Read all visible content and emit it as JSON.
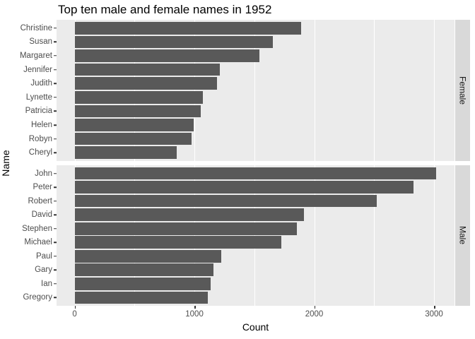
{
  "title": "Top ten male and female names in 1952",
  "chart_data": {
    "type": "bar",
    "orientation": "horizontal",
    "title": "Top ten male and female names in 1952",
    "xlabel": "Count",
    "ylabel": "Name",
    "x_ticks": [
      0,
      1000,
      2000,
      3000
    ],
    "x_minor_ticks": [
      500,
      1500,
      2500
    ],
    "x_domain": [
      -151,
      3171
    ],
    "grid": "on",
    "legend": "none",
    "facets": [
      {
        "label": "Female",
        "categories": [
          "Christine",
          "Susan",
          "Margaret",
          "Jennifer",
          "Judith",
          "Lynette",
          "Patricia",
          "Helen",
          "Robyn",
          "Cheryl"
        ],
        "values": [
          1890,
          1655,
          1545,
          1210,
          1190,
          1070,
          1055,
          995,
          975,
          855
        ]
      },
      {
        "label": "Male",
        "categories": [
          "John",
          "Peter",
          "Robert",
          "David",
          "Stephen",
          "Michael",
          "Paul",
          "Gary",
          "Ian",
          "Gregory"
        ],
        "values": [
          3020,
          2830,
          2520,
          1915,
          1855,
          1725,
          1225,
          1160,
          1135,
          1110
        ]
      }
    ],
    "colors": {
      "bar": "#595959",
      "panel_background": "#EBEBEB",
      "gridline": "#FFFFFF",
      "strip_background": "#D9D9D9",
      "strip_text": "#1A1A1A",
      "axis_text": "#4D4D4D",
      "tick_mark": "#333333",
      "title_text": "#000000"
    }
  }
}
